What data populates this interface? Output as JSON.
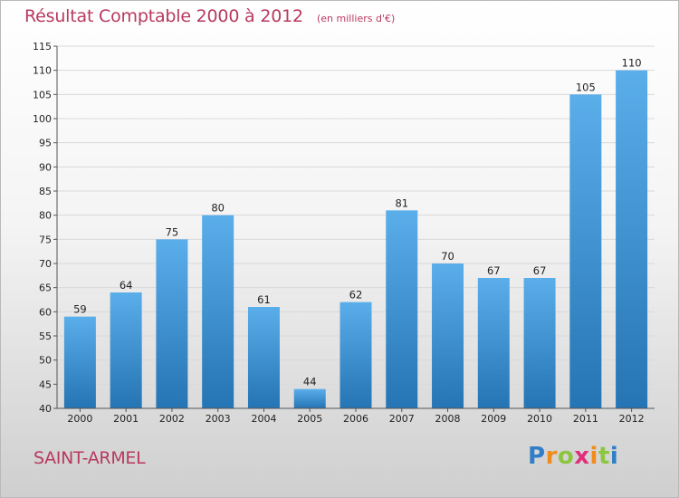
{
  "chart_data": {
    "type": "bar",
    "title": "Résultat Comptable 2000 à 2012",
    "subtitle": "(en milliers d'€)",
    "categories": [
      "2000",
      "2001",
      "2002",
      "2003",
      "2004",
      "2005",
      "2006",
      "2007",
      "2008",
      "2009",
      "2010",
      "2011",
      "2012"
    ],
    "values": [
      59,
      64,
      75,
      80,
      61,
      44,
      62,
      81,
      70,
      67,
      67,
      105,
      110
    ],
    "ylim": [
      40,
      115
    ],
    "yticks": [
      40,
      45,
      50,
      55,
      60,
      65,
      70,
      75,
      80,
      85,
      90,
      95,
      100,
      105,
      110,
      115
    ],
    "xlabel": "",
    "ylabel": "",
    "grid": true,
    "colors": {
      "bar_top": "#5aaeea",
      "bar_bottom": "#2574b4",
      "grid": "#d9d9d9",
      "title": "#b8395f"
    }
  },
  "commune": "SAINT-ARMEL",
  "logo": {
    "letters": [
      "P",
      "r",
      "o",
      "x",
      "i",
      "t",
      "i"
    ],
    "colors": [
      "#2f7ec8",
      "#f08c1c",
      "#8cc63f",
      "#e0307a",
      "#f08c1c",
      "#8cc63f",
      "#2f7ec8"
    ]
  }
}
